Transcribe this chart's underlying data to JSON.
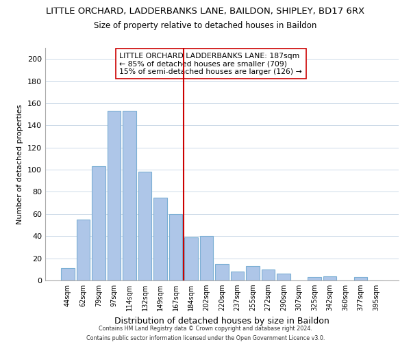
{
  "title": "LITTLE ORCHARD, LADDERBANKS LANE, BAILDON, SHIPLEY, BD17 6RX",
  "subtitle": "Size of property relative to detached houses in Baildon",
  "xlabel": "Distribution of detached houses by size in Baildon",
  "ylabel": "Number of detached properties",
  "bar_labels": [
    "44sqm",
    "62sqm",
    "79sqm",
    "97sqm",
    "114sqm",
    "132sqm",
    "149sqm",
    "167sqm",
    "184sqm",
    "202sqm",
    "220sqm",
    "237sqm",
    "255sqm",
    "272sqm",
    "290sqm",
    "307sqm",
    "325sqm",
    "342sqm",
    "360sqm",
    "377sqm",
    "395sqm"
  ],
  "bar_values": [
    11,
    55,
    103,
    153,
    153,
    98,
    75,
    60,
    39,
    40,
    15,
    8,
    13,
    10,
    6,
    0,
    3,
    4,
    0,
    3,
    0
  ],
  "bar_color": "#aec6e8",
  "bar_edge_color": "#7bafd4",
  "vline_color": "#cc0000",
  "vline_index": 8,
  "ylim": [
    0,
    210
  ],
  "yticks": [
    0,
    20,
    40,
    60,
    80,
    100,
    120,
    140,
    160,
    180,
    200
  ],
  "annotation_title": "LITTLE ORCHARD LADDERBANKS LANE: 187sqm",
  "annotation_line1": "← 85% of detached houses are smaller (709)",
  "annotation_line2": "15% of semi-detached houses are larger (126) →",
  "footer1": "Contains HM Land Registry data © Crown copyright and database right 2024.",
  "footer2": "Contains public sector information licensed under the Open Government Licence v3.0."
}
